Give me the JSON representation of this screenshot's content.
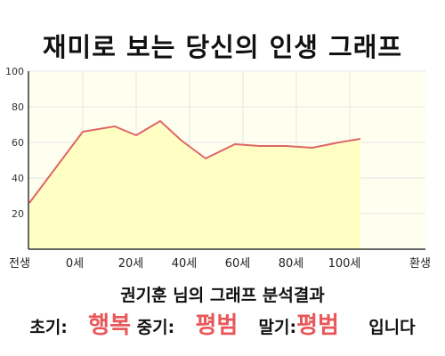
{
  "page": {
    "title": "재미로 보는 당신의 인생 그래프"
  },
  "chart_data": {
    "type": "area",
    "title": "재미로 보는 당신의 인생 그래프",
    "xlabel": "",
    "ylabel": "",
    "categories": [
      "전생",
      "0세",
      "20세",
      "40세",
      "60세",
      "80세",
      "100세",
      "환생"
    ],
    "ylim": [
      0,
      100
    ],
    "yticks": [
      20,
      40,
      60,
      80,
      100
    ],
    "grid": true,
    "series": [
      {
        "points": [
          {
            "x": -1,
            "y": 26
          },
          {
            "x": 0,
            "y": 66
          },
          {
            "x": 0.6,
            "y": 69
          },
          {
            "x": 1,
            "y": 64
          },
          {
            "x": 1.45,
            "y": 72
          },
          {
            "x": 1.85,
            "y": 61
          },
          {
            "x": 2.3,
            "y": 51
          },
          {
            "x": 2.85,
            "y": 59
          },
          {
            "x": 3.3,
            "y": 58
          },
          {
            "x": 3.8,
            "y": 58
          },
          {
            "x": 4.3,
            "y": 57
          },
          {
            "x": 4.8,
            "y": 60
          },
          {
            "x": 5.2,
            "y": 62
          }
        ]
      }
    ],
    "colors": {
      "line": "#e06666",
      "fill": "#ffffc4",
      "plot_background": "#fffff0",
      "grid": "#e6e6e6"
    }
  },
  "caption": {
    "text": "권기훈 님의 그래프 분석결과"
  },
  "result": {
    "early_label": "초기:",
    "early_value": "행복",
    "middle_label": "중기:",
    "middle_value": "평범",
    "late_label": "말기:",
    "late_value": "평범",
    "suffix": "입니다"
  }
}
